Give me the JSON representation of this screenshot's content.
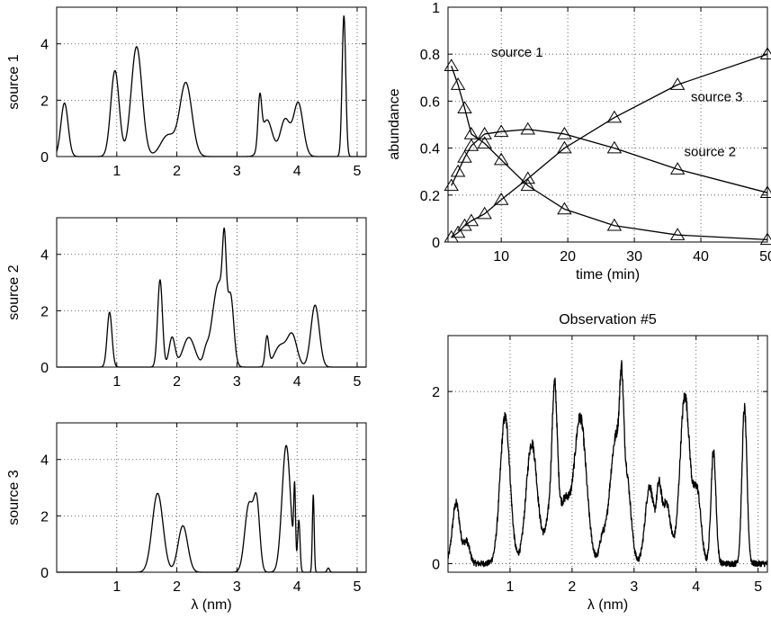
{
  "chart_data": [
    {
      "id": "source1",
      "type": "line",
      "title": "",
      "xlabel": "",
      "ylabel": "source 1",
      "xlim": [
        0,
        5.15
      ],
      "ylim": [
        0,
        5.3
      ],
      "xticks": [
        1,
        2,
        3,
        4,
        5
      ],
      "yticks": [
        0,
        2,
        4
      ],
      "grid": true,
      "peaks": [
        {
          "center": 0.13,
          "width": 0.06,
          "height": 1.9
        },
        {
          "center": 0.97,
          "width": 0.07,
          "height": 3.05
        },
        {
          "center": 1.33,
          "width": 0.09,
          "height": 3.9
        },
        {
          "center": 1.85,
          "width": 0.12,
          "height": 0.75
        },
        {
          "center": 2.15,
          "width": 0.1,
          "height": 2.6
        },
        {
          "center": 3.38,
          "width": 0.03,
          "height": 1.7
        },
        {
          "center": 3.5,
          "width": 0.09,
          "height": 1.3
        },
        {
          "center": 3.8,
          "width": 0.08,
          "height": 1.3
        },
        {
          "center": 4.02,
          "width": 0.08,
          "height": 1.9
        },
        {
          "center": 4.78,
          "width": 0.03,
          "height": 5.0
        }
      ]
    },
    {
      "id": "source2",
      "type": "line",
      "title": "",
      "xlabel": "",
      "ylabel": "source 2",
      "xlim": [
        0,
        5.15
      ],
      "ylim": [
        0,
        5.3
      ],
      "xticks": [
        1,
        2,
        3,
        4,
        5
      ],
      "yticks": [
        0,
        2,
        4
      ],
      "grid": true,
      "peaks": [
        {
          "center": 0.88,
          "width": 0.04,
          "height": 1.95
        },
        {
          "center": 1.72,
          "width": 0.04,
          "height": 3.1
        },
        {
          "center": 1.92,
          "width": 0.05,
          "height": 1.05
        },
        {
          "center": 2.2,
          "width": 0.1,
          "height": 1.05
        },
        {
          "center": 2.48,
          "width": 0.04,
          "height": 0.35
        },
        {
          "center": 2.7,
          "width": 0.11,
          "height": 3.0
        },
        {
          "center": 2.79,
          "width": 0.03,
          "height": 2.6
        },
        {
          "center": 2.9,
          "width": 0.05,
          "height": 2.0
        },
        {
          "center": 3.5,
          "width": 0.03,
          "height": 1.05
        },
        {
          "center": 3.72,
          "width": 0.1,
          "height": 0.75
        },
        {
          "center": 3.92,
          "width": 0.08,
          "height": 1.1
        },
        {
          "center": 4.3,
          "width": 0.07,
          "height": 2.2
        }
      ]
    },
    {
      "id": "source3",
      "type": "line",
      "title": "",
      "xlabel": "λ (nm)",
      "ylabel": "source 3",
      "xlim": [
        0,
        5.15
      ],
      "ylim": [
        0,
        5.3
      ],
      "xticks": [
        1,
        2,
        3,
        4,
        5
      ],
      "yticks": [
        0,
        2,
        4
      ],
      "grid": true,
      "peaks": [
        {
          "center": 1.68,
          "width": 0.09,
          "height": 2.8
        },
        {
          "center": 2.1,
          "width": 0.08,
          "height": 1.65
        },
        {
          "center": 3.2,
          "width": 0.07,
          "height": 2.4
        },
        {
          "center": 3.33,
          "width": 0.05,
          "height": 2.3
        },
        {
          "center": 3.82,
          "width": 0.07,
          "height": 4.5
        },
        {
          "center": 3.96,
          "width": 0.015,
          "height": 2.6
        },
        {
          "center": 4.03,
          "width": 0.02,
          "height": 1.8
        },
        {
          "center": 4.27,
          "width": 0.015,
          "height": 2.75
        },
        {
          "center": 4.52,
          "width": 0.02,
          "height": 0.15
        }
      ]
    },
    {
      "id": "abundance",
      "type": "line",
      "title": "",
      "xlabel": "time (min)",
      "ylabel": "abundance",
      "xlim": [
        2,
        50
      ],
      "ylim": [
        0,
        1
      ],
      "xticks": [
        10,
        20,
        30,
        40,
        50
      ],
      "yticks": [
        0,
        0.2,
        0.4,
        0.6,
        0.8,
        1
      ],
      "ytick_labels": [
        "0",
        "0.2",
        "0.4",
        "0.6",
        "0.8",
        "1"
      ],
      "grid": true,
      "marker": "triangle",
      "x": [
        2.5,
        3.5,
        4.5,
        5.5,
        7.5,
        10,
        14,
        19.5,
        27,
        36.5,
        50
      ],
      "series": [
        {
          "name": "source 1",
          "values": [
            0.75,
            0.67,
            0.57,
            0.46,
            0.42,
            0.35,
            0.24,
            0.14,
            0.07,
            0.03,
            0.01
          ]
        },
        {
          "name": "source 2",
          "values": [
            0.24,
            0.3,
            0.36,
            0.41,
            0.46,
            0.47,
            0.48,
            0.46,
            0.4,
            0.31,
            0.21
          ]
        },
        {
          "name": "source 3",
          "values": [
            0.02,
            0.04,
            0.07,
            0.09,
            0.12,
            0.18,
            0.27,
            0.4,
            0.53,
            0.67,
            0.8
          ]
        }
      ]
    },
    {
      "id": "observation5",
      "type": "line",
      "title": "Observation #5",
      "xlabel": "λ (nm)",
      "ylabel": "",
      "xlim": [
        0,
        5.15
      ],
      "ylim": [
        -0.1,
        2.65
      ],
      "xticks": [
        1,
        2,
        3,
        4,
        5
      ],
      "yticks": [
        0,
        2
      ],
      "grid": true,
      "noise_amplitude": 0.035,
      "peaks": [
        {
          "center": 0.13,
          "width": 0.06,
          "height": 0.7
        },
        {
          "center": 0.3,
          "width": 0.05,
          "height": 0.25
        },
        {
          "center": 0.92,
          "width": 0.08,
          "height": 1.7
        },
        {
          "center": 1.35,
          "width": 0.09,
          "height": 1.4
        },
        {
          "center": 1.72,
          "width": 0.04,
          "height": 1.3
        },
        {
          "center": 1.7,
          "width": 0.1,
          "height": 0.8
        },
        {
          "center": 1.9,
          "width": 0.07,
          "height": 0.55
        },
        {
          "center": 2.13,
          "width": 0.1,
          "height": 1.7
        },
        {
          "center": 2.48,
          "width": 0.04,
          "height": 0.2
        },
        {
          "center": 2.72,
          "width": 0.11,
          "height": 1.5
        },
        {
          "center": 2.8,
          "width": 0.03,
          "height": 1.0
        },
        {
          "center": 2.9,
          "width": 0.06,
          "height": 0.6
        },
        {
          "center": 3.25,
          "width": 0.07,
          "height": 0.9
        },
        {
          "center": 3.4,
          "width": 0.04,
          "height": 0.7
        },
        {
          "center": 3.52,
          "width": 0.07,
          "height": 0.7
        },
        {
          "center": 3.82,
          "width": 0.08,
          "height": 1.95
        },
        {
          "center": 4.02,
          "width": 0.06,
          "height": 0.8
        },
        {
          "center": 4.28,
          "width": 0.04,
          "height": 1.3
        },
        {
          "center": 4.78,
          "width": 0.04,
          "height": 1.8
        }
      ]
    }
  ],
  "annotations": [
    {
      "text": "source 1",
      "x": 8.5,
      "y": 0.79
    },
    {
      "text": "source 3",
      "x": 38.5,
      "y": 0.6
    },
    {
      "text": "source 2",
      "x": 37.5,
      "y": 0.365
    }
  ]
}
